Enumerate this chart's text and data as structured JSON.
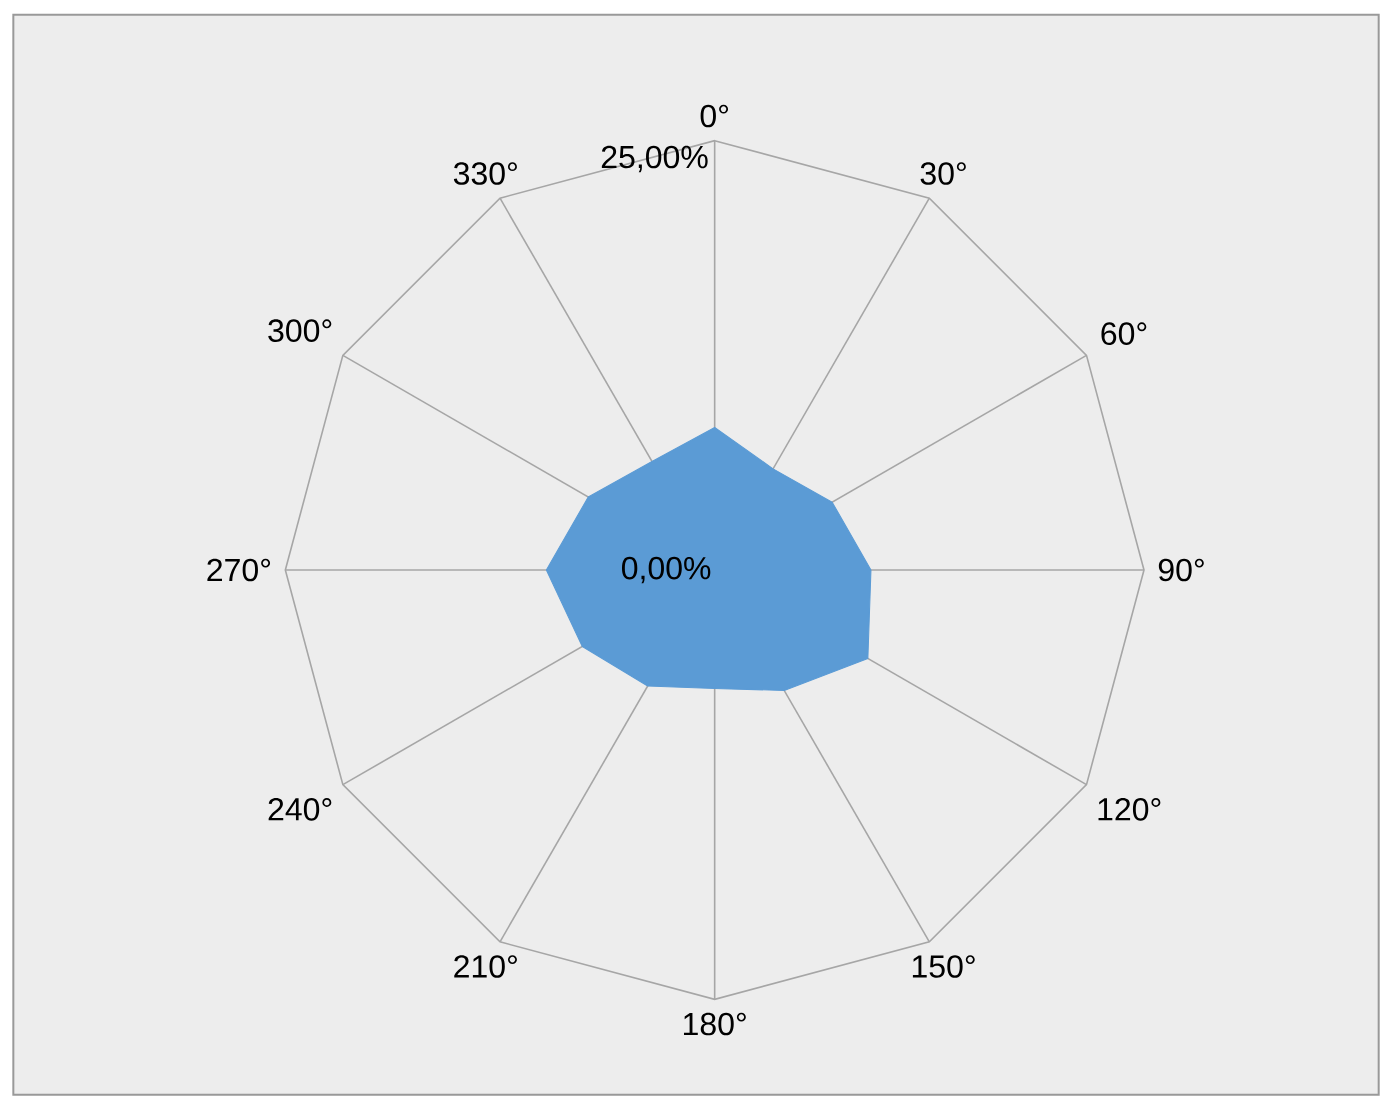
{
  "chart_data": {
    "type": "radar",
    "categories": [
      "0°",
      "30°",
      "60°",
      "90°",
      "120°",
      "150°",
      "180°",
      "210°",
      "240°",
      "270°",
      "300°",
      "330°"
    ],
    "series": [
      {
        "color": "#5b9bd5",
        "values": [
          8.3,
          6.8,
          7.9,
          9.1,
          10.3,
          8.1,
          6.9,
          7.8,
          8.9,
          9.8,
          8.5,
          7.3
        ]
      }
    ],
    "ylim": [
      0,
      25
    ],
    "yticks": [
      {
        "value": 0,
        "label": "0,00%"
      },
      {
        "value": 25,
        "label": "25,00%"
      }
    ],
    "grid": true
  }
}
